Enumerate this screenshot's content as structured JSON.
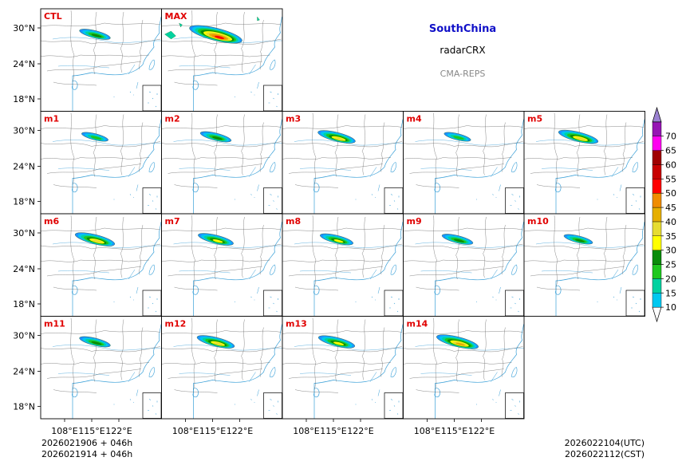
{
  "header": {
    "region": "SouthChina",
    "variable": "radarCRX",
    "system": "CMA-REPS"
  },
  "axes": {
    "lat_ticks": [
      "30°N",
      "24°N",
      "18°N"
    ],
    "lon_ticks": [
      "108°E",
      "115°E",
      "122°E"
    ]
  },
  "panels": [
    {
      "id": "CTL",
      "label": "CTL",
      "row": 0,
      "col": 0,
      "intensity": 1.0
    },
    {
      "id": "MAX",
      "label": "MAX",
      "row": 0,
      "col": 1,
      "intensity": 3.0
    },
    {
      "id": "m1",
      "label": "m1",
      "row": 1,
      "col": 0,
      "intensity": 0.6
    },
    {
      "id": "m2",
      "label": "m2",
      "row": 1,
      "col": 1,
      "intensity": 1.0
    },
    {
      "id": "m3",
      "label": "m3",
      "row": 1,
      "col": 2,
      "intensity": 1.6
    },
    {
      "id": "m4",
      "label": "m4",
      "row": 1,
      "col": 3,
      "intensity": 0.6
    },
    {
      "id": "m5",
      "label": "m5",
      "row": 1,
      "col": 4,
      "intensity": 1.8
    },
    {
      "id": "m6",
      "label": "m6",
      "row": 2,
      "col": 0,
      "intensity": 1.8
    },
    {
      "id": "m7",
      "label": "m7",
      "row": 2,
      "col": 1,
      "intensity": 1.4
    },
    {
      "id": "m8",
      "label": "m8",
      "row": 2,
      "col": 2,
      "intensity": 1.2
    },
    {
      "id": "m9",
      "label": "m9",
      "row": 2,
      "col": 3,
      "intensity": 1.0
    },
    {
      "id": "m10",
      "label": "m10",
      "row": 2,
      "col": 4,
      "intensity": 0.8
    },
    {
      "id": "m11",
      "label": "m11",
      "row": 3,
      "col": 0,
      "intensity": 1.0
    },
    {
      "id": "m12",
      "label": "m12",
      "row": 3,
      "col": 1,
      "intensity": 1.6
    },
    {
      "id": "m13",
      "label": "m13",
      "row": 3,
      "col": 2,
      "intensity": 1.5
    },
    {
      "id": "m14",
      "label": "m14",
      "row": 3,
      "col": 3,
      "intensity": 2.0
    }
  ],
  "colorbar": {
    "levels": [
      "10",
      "15",
      "20",
      "25",
      "30",
      "35",
      "40",
      "45",
      "50",
      "55",
      "60",
      "65",
      "70"
    ],
    "colors": [
      "#1e90ff",
      "#00c8f0",
      "#00d2a0",
      "#1ec81e",
      "#0a8c0a",
      "#ffff00",
      "#e6dc32",
      "#e6af00",
      "#f08c00",
      "#ff0000",
      "#c80000",
      "#a00000",
      "#ff00f0",
      "#9614b4",
      "#9b82d2"
    ]
  },
  "footer": {
    "init_utc": "2026021906  +  046h",
    "init_cst": "2026021914  +  046h",
    "valid_utc": "2026022104(UTC)",
    "valid_cst": "2026022112(CST)"
  }
}
